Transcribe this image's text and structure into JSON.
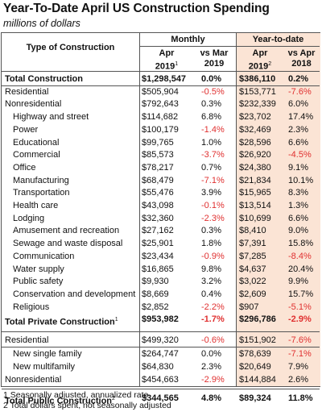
{
  "title": "Year-To-Date April US Construction Spending",
  "subtitle": "millions of dollars",
  "headers": {
    "type": "Type of Construction",
    "monthly": "Monthly",
    "ytd": "Year-to-date",
    "col1_line1": "Apr",
    "col1_line2": "2019",
    "col1_sup": "1",
    "col2_line1": "vs Mar",
    "col2_line2": "2019",
    "col3_line1": "Apr",
    "col3_line2": "2019",
    "col3_sup": "2",
    "col4_line1": "vs Apr",
    "col4_line2": "2018"
  },
  "colors": {
    "negative": "#e03030",
    "ytd_background": "#fbe4d5"
  },
  "rows": [
    {
      "label": "Total Construction",
      "sup": "",
      "bold": true,
      "indent": false,
      "monthly": "$1,298,547",
      "vs_mar": "0.0%",
      "ytd": "$386,110",
      "vs_apr": "0.2%"
    },
    {
      "label": "Residential",
      "sup": "",
      "bold": false,
      "indent": false,
      "monthly": "$505,904",
      "vs_mar": "-0.5%",
      "ytd": "$153,771",
      "vs_apr": "-7.6%"
    },
    {
      "label": "Nonresidential",
      "sup": "",
      "bold": false,
      "indent": false,
      "monthly": "$792,643",
      "vs_mar": "0.3%",
      "ytd": "$232,339",
      "vs_apr": "6.0%"
    },
    {
      "label": "Highway and street",
      "sup": "",
      "bold": false,
      "indent": true,
      "monthly": "$114,682",
      "vs_mar": "6.8%",
      "ytd": "$23,702",
      "vs_apr": "17.4%"
    },
    {
      "label": "Power",
      "sup": "",
      "bold": false,
      "indent": true,
      "monthly": "$100,179",
      "vs_mar": "-1.4%",
      "ytd": "$32,469",
      "vs_apr": "2.3%"
    },
    {
      "label": "Educational",
      "sup": "",
      "bold": false,
      "indent": true,
      "monthly": "$99,765",
      "vs_mar": "1.0%",
      "ytd": "$28,596",
      "vs_apr": "6.6%"
    },
    {
      "label": "Commercial",
      "sup": "",
      "bold": false,
      "indent": true,
      "monthly": "$85,573",
      "vs_mar": "-3.7%",
      "ytd": "$26,920",
      "vs_apr": "-4.5%"
    },
    {
      "label": "Office",
      "sup": "",
      "bold": false,
      "indent": true,
      "monthly": "$78,217",
      "vs_mar": "0.7%",
      "ytd": "$24,380",
      "vs_apr": "9.1%"
    },
    {
      "label": "Manufacturing",
      "sup": "",
      "bold": false,
      "indent": true,
      "monthly": "$68,479",
      "vs_mar": "-7.1%",
      "ytd": "$21,834",
      "vs_apr": "10.1%"
    },
    {
      "label": "Transportation",
      "sup": "",
      "bold": false,
      "indent": true,
      "monthly": "$55,476",
      "vs_mar": "3.9%",
      "ytd": "$15,965",
      "vs_apr": "8.3%"
    },
    {
      "label": "Health care",
      "sup": "",
      "bold": false,
      "indent": true,
      "monthly": "$43,098",
      "vs_mar": "-0.1%",
      "ytd": "$13,514",
      "vs_apr": "1.3%"
    },
    {
      "label": "Lodging",
      "sup": "",
      "bold": false,
      "indent": true,
      "monthly": "$32,360",
      "vs_mar": "-2.3%",
      "ytd": "$10,699",
      "vs_apr": "6.6%"
    },
    {
      "label": "Amusement and recreation",
      "sup": "",
      "bold": false,
      "indent": true,
      "monthly": "$27,162",
      "vs_mar": "0.3%",
      "ytd": "$8,410",
      "vs_apr": "9.0%"
    },
    {
      "label": "Sewage and waste disposal",
      "sup": "",
      "bold": false,
      "indent": true,
      "monthly": "$25,901",
      "vs_mar": "1.8%",
      "ytd": "$7,391",
      "vs_apr": "15.8%"
    },
    {
      "label": "Communication",
      "sup": "",
      "bold": false,
      "indent": true,
      "monthly": "$23,434",
      "vs_mar": "-0.9%",
      "ytd": "$7,285",
      "vs_apr": "-8.4%"
    },
    {
      "label": "Water supply",
      "sup": "",
      "bold": false,
      "indent": true,
      "monthly": "$16,865",
      "vs_mar": "9.8%",
      "ytd": "$4,637",
      "vs_apr": "20.4%"
    },
    {
      "label": "Public safety",
      "sup": "",
      "bold": false,
      "indent": true,
      "monthly": "$9,930",
      "vs_mar": "3.2%",
      "ytd": "$3,022",
      "vs_apr": "9.9%"
    },
    {
      "label": "Conservation and development",
      "sup": "",
      "bold": false,
      "indent": true,
      "monthly": "$8,669",
      "vs_mar": "0.4%",
      "ytd": "$2,609",
      "vs_apr": "15.7%"
    },
    {
      "label": "Religious",
      "sup": "",
      "bold": false,
      "indent": true,
      "monthly": "$2,852",
      "vs_mar": "-2.2%",
      "ytd": "$907",
      "vs_apr": "-5.1%"
    },
    {
      "label": "Total Private Construction",
      "sup": "1",
      "bold": true,
      "indent": false,
      "monthly": "$953,982",
      "vs_mar": "-1.7%",
      "ytd": "$296,786",
      "vs_apr": "-2.9%"
    },
    {
      "label": "Residential",
      "sup": "",
      "bold": false,
      "indent": false,
      "monthly": "$499,320",
      "vs_mar": "-0.6%",
      "ytd": "$151,902",
      "vs_apr": "-7.6%"
    },
    {
      "label": "New single family",
      "sup": "",
      "bold": false,
      "indent": true,
      "monthly": "$264,747",
      "vs_mar": "0.0%",
      "ytd": "$78,639",
      "vs_apr": "-7.1%"
    },
    {
      "label": "New multifamily",
      "sup": "",
      "bold": false,
      "indent": true,
      "monthly": "$64,830",
      "vs_mar": "2.3%",
      "ytd": "$20,649",
      "vs_apr": "7.9%"
    },
    {
      "label": "Nonresidential",
      "sup": "",
      "bold": false,
      "indent": false,
      "monthly": "$454,663",
      "vs_mar": "-2.9%",
      "ytd": "$144,884",
      "vs_apr": "2.6%"
    },
    {
      "label": "Total Public Construction",
      "sup": "2",
      "bold": true,
      "indent": false,
      "monthly": "$344,565",
      "vs_mar": "4.8%",
      "ytd": "$89,324",
      "vs_apr": "11.8%"
    }
  ],
  "footnotes": [
    "1 Seasonally adjusted, annualized rate",
    "2 Total dollars spent, not seasonally adjusted"
  ]
}
